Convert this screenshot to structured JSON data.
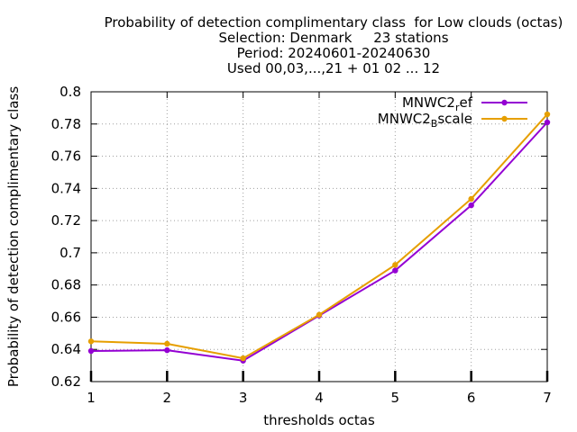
{
  "chart_data": {
    "type": "line",
    "title_lines": [
      "Probability of detection complimentary class  for Low clouds (octas)",
      "Selection: Denmark     23 stations",
      "Period: 20240601-20240630",
      "Used 00,03,...,21 + 01 02 ... 12"
    ],
    "xlabel": "thresholds octas",
    "ylabel": "Probability of detection complimentary class",
    "x": [
      1,
      2,
      3,
      4,
      5,
      6,
      7
    ],
    "xlim": [
      1,
      7
    ],
    "ylim": [
      0.62,
      0.8
    ],
    "yticks": [
      "0.62",
      "0.64",
      "0.66",
      "0.68",
      "0.7",
      "0.72",
      "0.74",
      "0.76",
      "0.78",
      "0.8"
    ],
    "xticks": [
      "1",
      "2",
      "3",
      "4",
      "5",
      "6",
      "7"
    ],
    "grid": true,
    "legend_position": "top-right",
    "series": [
      {
        "name": "MNWC2_ref",
        "legend_main": "MNWC2",
        "legend_sub": "r",
        "legend_tail": "ef",
        "color": "#9400d3",
        "values": [
          0.639,
          0.6395,
          0.633,
          0.661,
          0.689,
          0.7295,
          0.781
        ]
      },
      {
        "name": "MNWC2_Bscale",
        "legend_main": "MNWC2",
        "legend_sub": "B",
        "legend_tail": "scale",
        "color": "#e69f00",
        "values": [
          0.645,
          0.6435,
          0.6345,
          0.6615,
          0.6925,
          0.7335,
          0.786
        ]
      }
    ]
  }
}
